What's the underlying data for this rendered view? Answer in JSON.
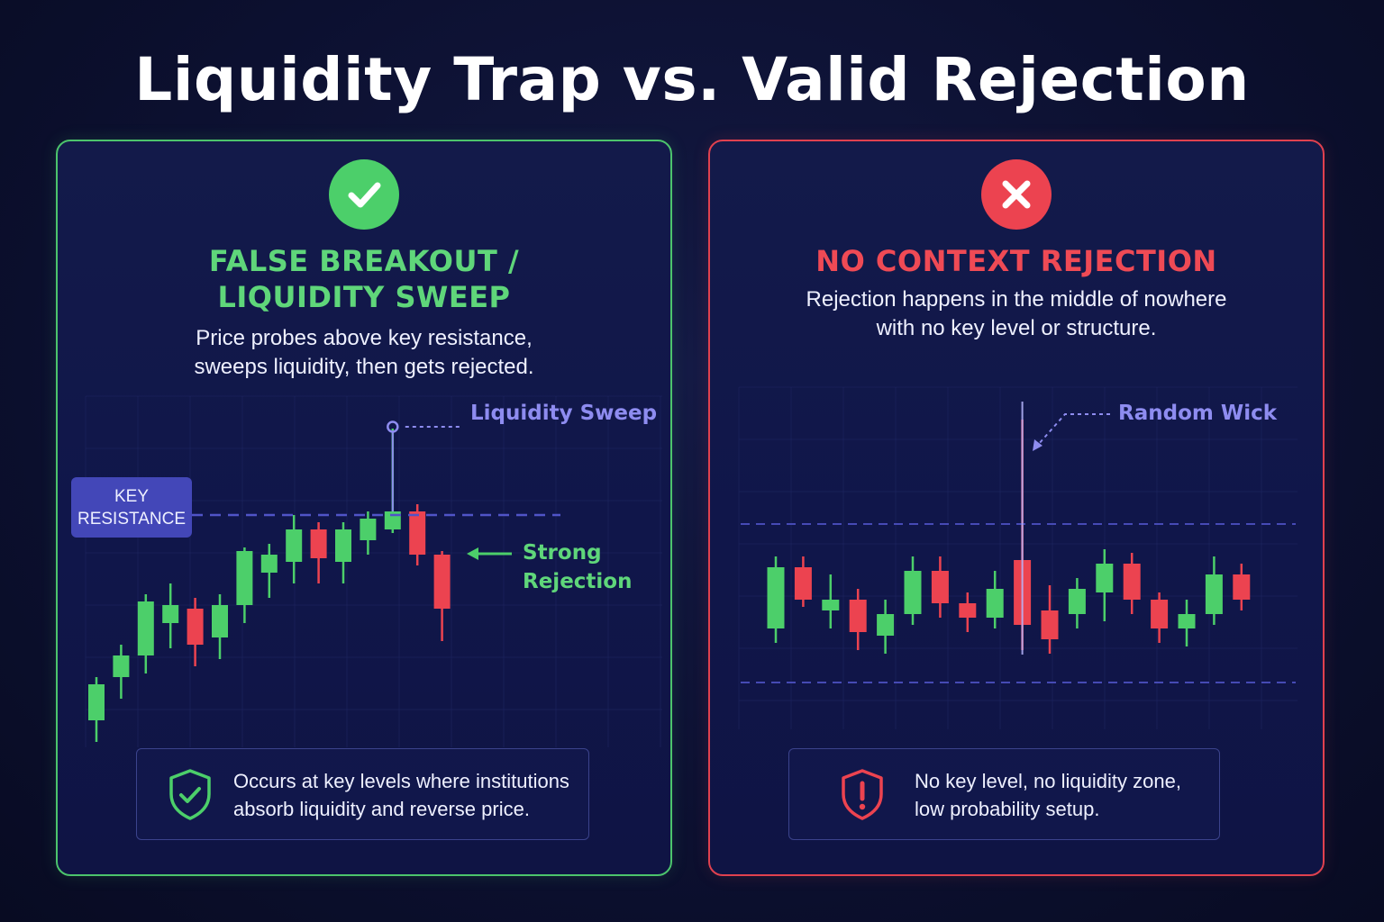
{
  "title": "Liquidity Trap vs. Valid Rejection",
  "colors": {
    "bull": "#4ccf6a",
    "bear": "#ec4350",
    "accent_purple": "#8e8cf0",
    "level_line": "#5054c8",
    "left_border": "#4cc46c",
    "right_border": "#e0414f"
  },
  "left_panel": {
    "icon": "check-icon",
    "heading_line1": "FALSE BREAKOUT /",
    "heading_line2": "LIQUIDITY SWEEP",
    "desc_line1": "Price probes above key resistance,",
    "desc_line2": "sweeps liquidity, then gets rejected.",
    "key_label_line1": "KEY",
    "key_label_line2": "RESISTANCE",
    "sweep_label": "Liquidity Sweep",
    "rejection_label_line1": "Strong",
    "rejection_label_line2": "Rejection",
    "note_icon": "shield-check-icon",
    "note_line1": "Occurs at key levels where institutions",
    "note_line2": "absorb liquidity and reverse price."
  },
  "right_panel": {
    "icon": "x-icon",
    "heading": "NO CONTEXT REJECTION",
    "desc_line1": "Rejection happens in the middle of nowhere",
    "desc_line2": "with no key level or structure.",
    "wick_label": "Random Wick",
    "note_icon": "shield-alert-icon",
    "note_line1": "No key level, no liquidity zone,",
    "note_line2": "low probability setup."
  },
  "chart_data": [
    {
      "type": "candlestick",
      "title": "FALSE BREAKOUT / LIQUIDITY SWEEP",
      "y_range": [
        0,
        100
      ],
      "levels": [
        {
          "name": "KEY RESISTANCE",
          "value": 67
        }
      ],
      "candles": [
        {
          "o": 10,
          "h": 22,
          "l": 4,
          "c": 20
        },
        {
          "o": 22,
          "h": 31,
          "l": 16,
          "c": 28
        },
        {
          "o": 28,
          "h": 45,
          "l": 23,
          "c": 43
        },
        {
          "o": 37,
          "h": 48,
          "l": 30,
          "c": 42
        },
        {
          "o": 41,
          "h": 44,
          "l": 25,
          "c": 31
        },
        {
          "o": 33,
          "h": 45,
          "l": 27,
          "c": 42
        },
        {
          "o": 42,
          "h": 58,
          "l": 37,
          "c": 57
        },
        {
          "o": 51,
          "h": 59,
          "l": 44,
          "c": 56
        },
        {
          "o": 54,
          "h": 67,
          "l": 48,
          "c": 63
        },
        {
          "o": 63,
          "h": 65,
          "l": 48,
          "c": 55
        },
        {
          "o": 54,
          "h": 65,
          "l": 48,
          "c": 63
        },
        {
          "o": 60,
          "h": 68,
          "l": 56,
          "c": 66
        },
        {
          "o": 63,
          "h": 91,
          "l": 62,
          "c": 68
        },
        {
          "o": 68,
          "h": 70,
          "l": 53,
          "c": 56
        },
        {
          "o": 56,
          "h": 57,
          "l": 32,
          "c": 41
        }
      ]
    },
    {
      "type": "candlestick",
      "title": "NO CONTEXT REJECTION",
      "y_range": [
        0,
        100
      ],
      "levels": [
        {
          "value": 62
        },
        {
          "value": 18
        }
      ],
      "candles": [
        {
          "o": 33,
          "h": 53,
          "l": 29,
          "c": 50
        },
        {
          "o": 50,
          "h": 53,
          "l": 39,
          "c": 41
        },
        {
          "o": 38,
          "h": 48,
          "l": 33,
          "c": 41
        },
        {
          "o": 41,
          "h": 44,
          "l": 27,
          "c": 32
        },
        {
          "o": 31,
          "h": 41,
          "l": 26,
          "c": 37
        },
        {
          "o": 37,
          "h": 53,
          "l": 34,
          "c": 49
        },
        {
          "o": 49,
          "h": 53,
          "l": 36,
          "c": 40
        },
        {
          "o": 40,
          "h": 43,
          "l": 32,
          "c": 36
        },
        {
          "o": 36,
          "h": 49,
          "l": 33,
          "c": 44
        },
        {
          "o": 52,
          "h": 91,
          "l": 27,
          "c": 34
        },
        {
          "o": 38,
          "h": 45,
          "l": 26,
          "c": 30
        },
        {
          "o": 37,
          "h": 47,
          "l": 33,
          "c": 44
        },
        {
          "o": 43,
          "h": 55,
          "l": 35,
          "c": 51
        },
        {
          "o": 51,
          "h": 54,
          "l": 37,
          "c": 41
        },
        {
          "o": 41,
          "h": 43,
          "l": 29,
          "c": 33
        },
        {
          "o": 33,
          "h": 41,
          "l": 28,
          "c": 37
        },
        {
          "o": 37,
          "h": 53,
          "l": 34,
          "c": 48
        },
        {
          "o": 48,
          "h": 51,
          "l": 38,
          "c": 41
        }
      ]
    }
  ]
}
